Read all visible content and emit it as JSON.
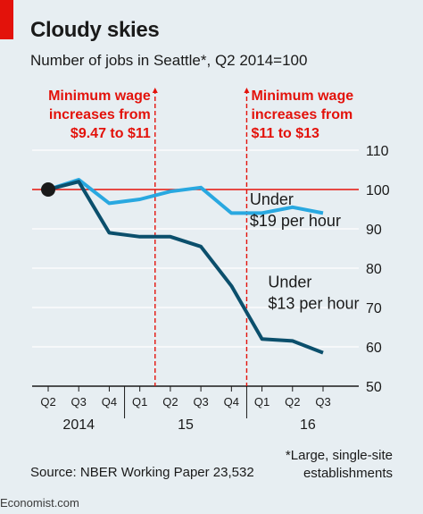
{
  "title": "Cloudy skies",
  "subtitle": "Number of jobs in Seattle*, Q2 2014=100",
  "footnote_line1": "*Large, single-site",
  "footnote_line2": "establishments",
  "source": "Source: NBER Working Paper 23,532",
  "logo": "Economist.com",
  "colors": {
    "accent_red": "#e3120b",
    "annotation_red": "#e3120b",
    "series_light": "#29a8e0",
    "series_dark": "#0b4f6c",
    "text": "#1a1a1a",
    "grid": "#ffffff"
  },
  "chart_data": {
    "type": "line",
    "x": [
      "Q2 2014",
      "Q3 2014",
      "Q4 2014",
      "Q1 2015",
      "Q2 2015",
      "Q3 2015",
      "Q4 2015",
      "Q1 2016",
      "Q2 2016",
      "Q3 2016"
    ],
    "tick_labels": [
      "Q2",
      "Q3",
      "Q4",
      "Q1",
      "Q2",
      "Q3",
      "Q4",
      "Q1",
      "Q2",
      "Q3"
    ],
    "year_labels": [
      {
        "label": "2014",
        "at": 1
      },
      {
        "label": "15",
        "at": 4.5
      },
      {
        "label": "16",
        "at": 8.5
      }
    ],
    "ylim": [
      50,
      110
    ],
    "yticks": [
      50,
      60,
      70,
      80,
      90,
      100,
      110
    ],
    "grid": true,
    "baseline": 100,
    "start_marker": {
      "x": 0,
      "y": 100
    },
    "series": [
      {
        "name": "Under $19 per hour",
        "label_lines": [
          "Under",
          "$19 per hour"
        ],
        "label_at": {
          "x": 6.6,
          "y": 92
        },
        "key": "light",
        "values": [
          100,
          102.5,
          96.5,
          97.5,
          99.5,
          100.5,
          94,
          94,
          95.5,
          94
        ]
      },
      {
        "name": "Under $13 per hour",
        "label_lines": [
          "Under",
          "$13 per hour"
        ],
        "label_at": {
          "x": 7.2,
          "y": 71
        },
        "key": "dark",
        "values": [
          100,
          102,
          89,
          88,
          88,
          85.5,
          75.5,
          62,
          61.5,
          58.5
        ]
      }
    ],
    "annotations": [
      {
        "x": 3.5,
        "lines": [
          "Minimum wage",
          "increases from",
          "$9.47 to $11"
        ],
        "align": "end"
      },
      {
        "x": 6.5,
        "lines": [
          "Minimum wage",
          "increases from",
          "$11 to $13"
        ],
        "align": "start"
      }
    ]
  }
}
